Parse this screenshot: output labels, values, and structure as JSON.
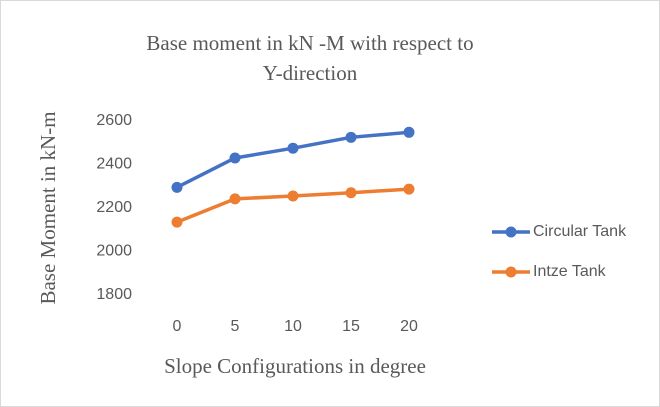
{
  "chart_data": {
    "type": "line",
    "title": "Base moment in kN -M with respect to Y-direction",
    "x_label": "Slope Configurations in degree",
    "y_label": "Base Moment in kN-m",
    "x": [
      0,
      5,
      10,
      15,
      20
    ],
    "xlim": [
      -2.5,
      22.5
    ],
    "xticks": [
      0,
      5,
      10,
      15,
      20
    ],
    "ylim": [
      1800,
      2600
    ],
    "yticks": [
      1800,
      2000,
      2200,
      2400,
      2600
    ],
    "grid": false,
    "legend": "right",
    "series": [
      {
        "name": "Circular Tank",
        "color": "#4472c4",
        "values": [
          2295,
          2430,
          2475,
          2525,
          2548
        ]
      },
      {
        "name": "Intze Tank",
        "color": "#ed7d31",
        "values": [
          2135,
          2242,
          2255,
          2270,
          2287
        ]
      }
    ]
  }
}
